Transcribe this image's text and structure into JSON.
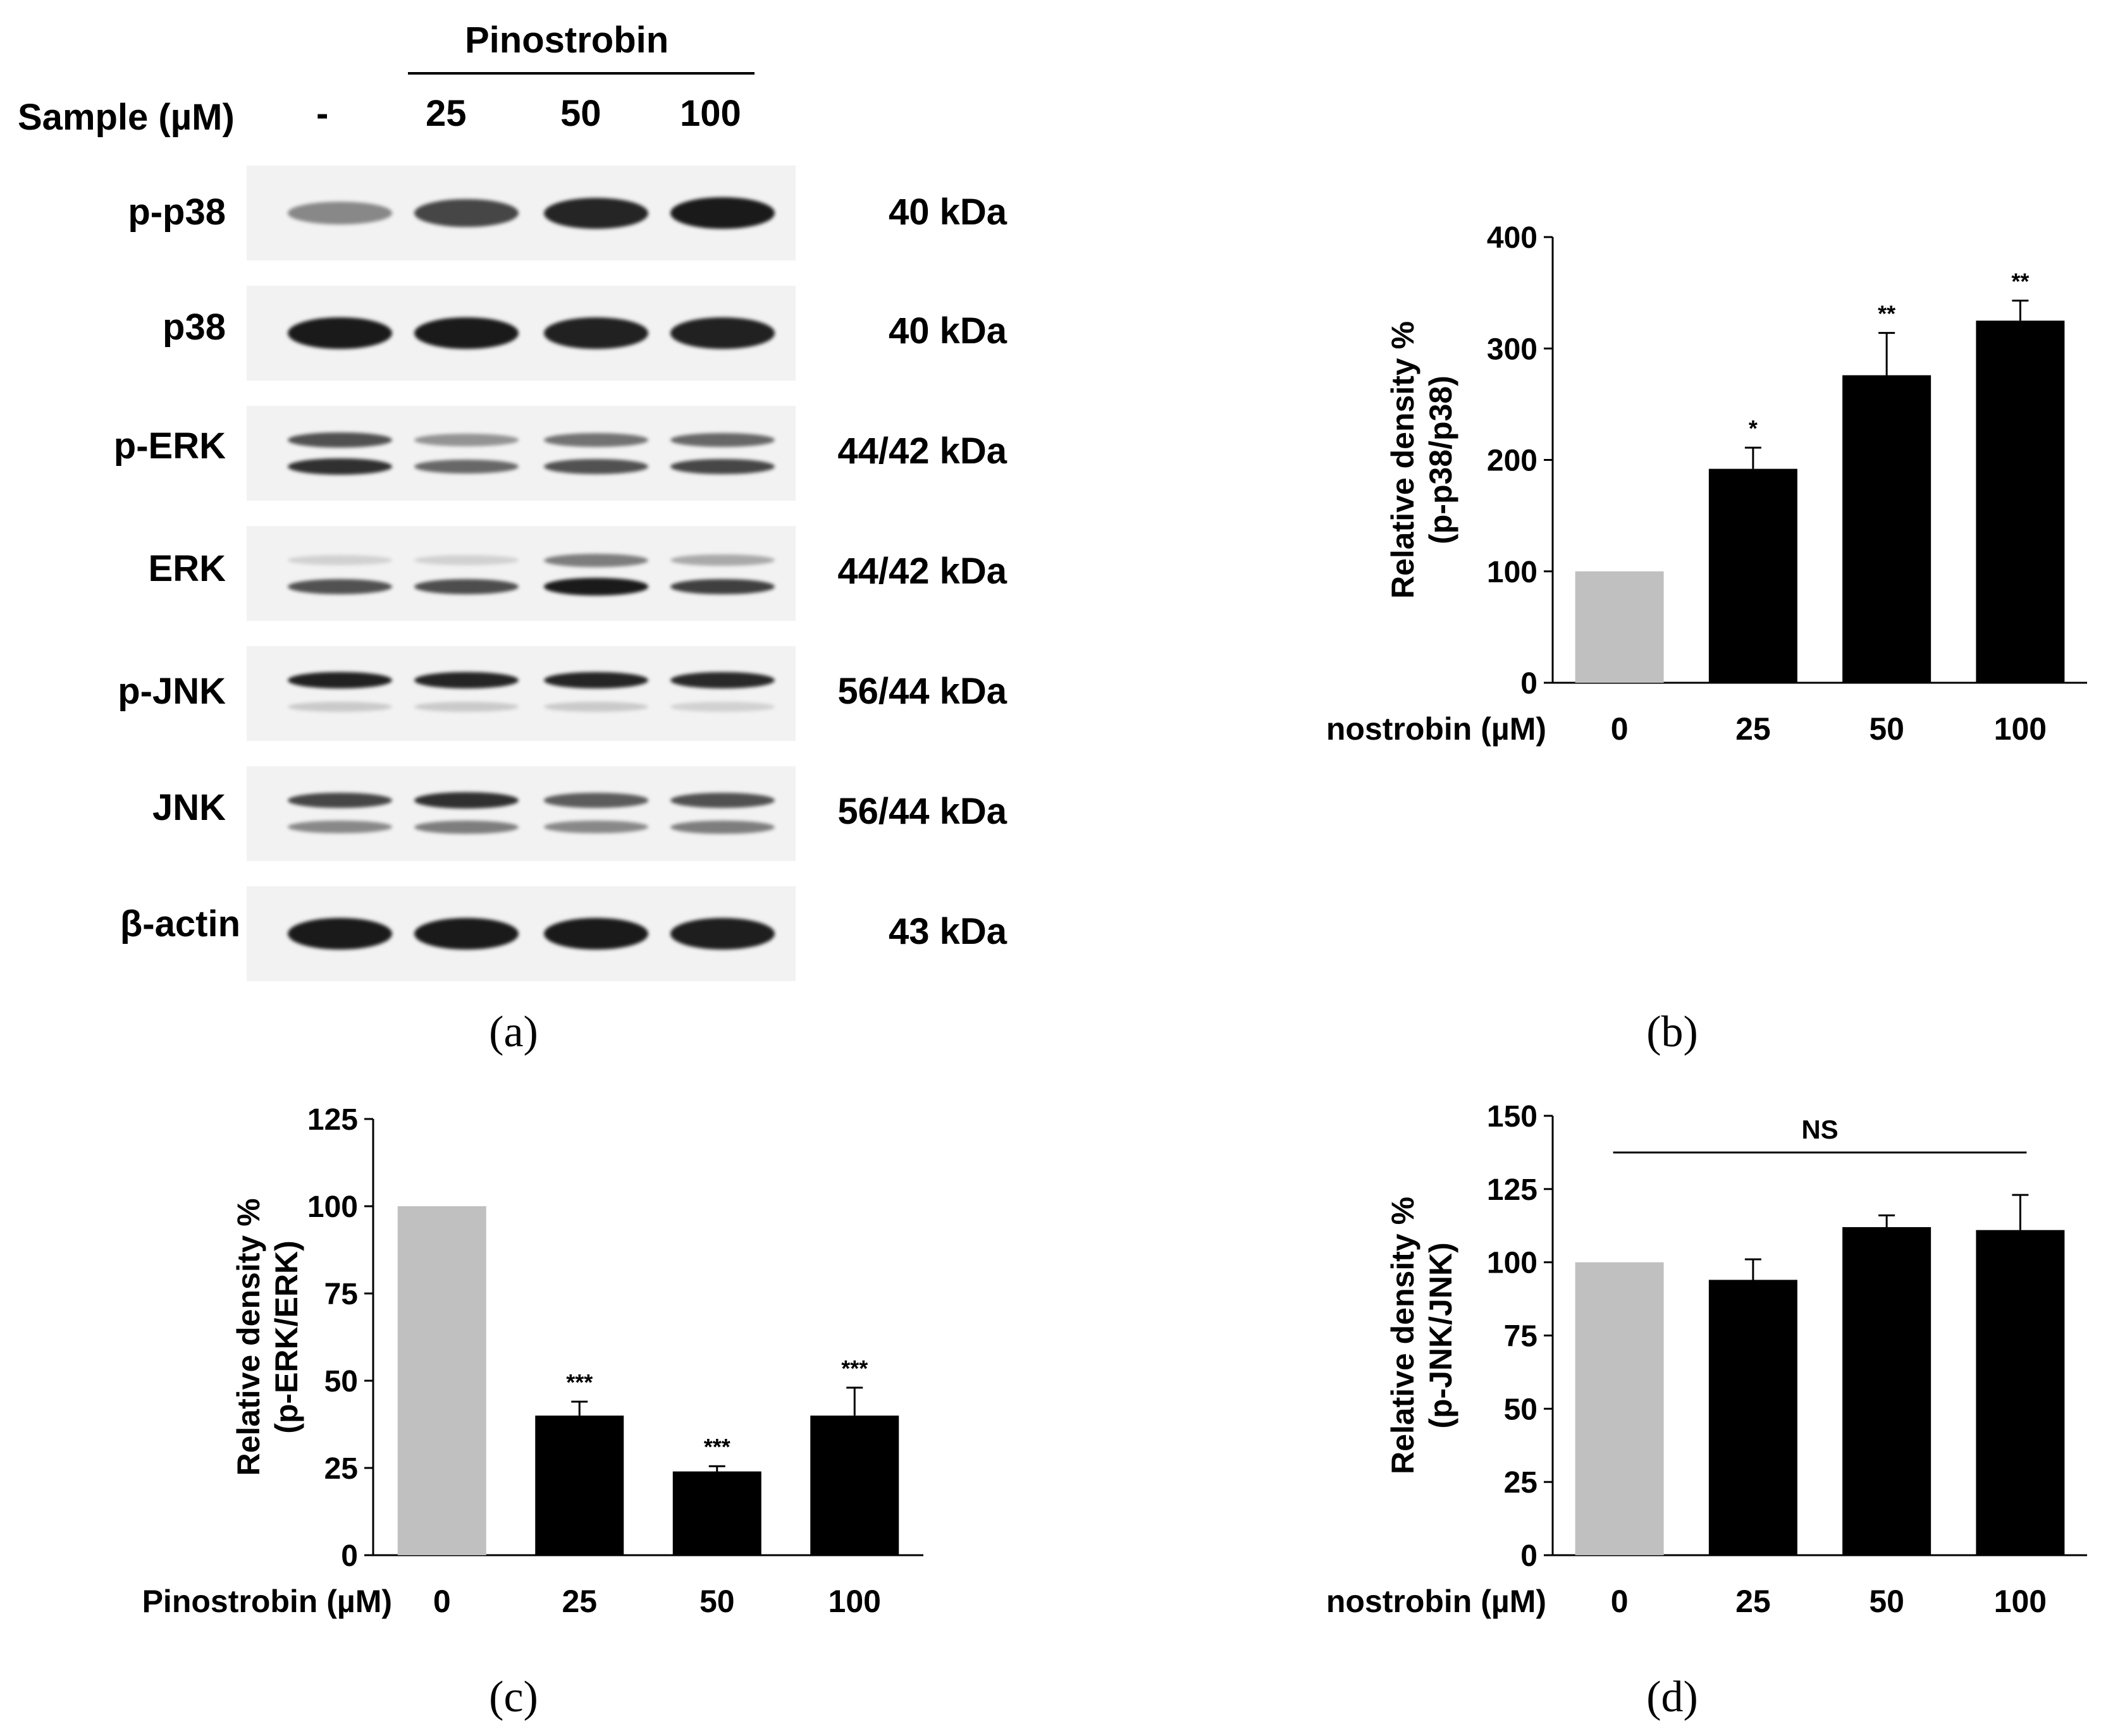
{
  "western_blot": {
    "treatment_title": "Pinostrobin",
    "sample_label": "Sample (µM)",
    "lanes": [
      "-",
      "25",
      "50",
      "100"
    ],
    "caption": "(a)",
    "rows": [
      {
        "name": "p-p38",
        "size": "40 kDa",
        "bands": [
          {
            "intensity": [
              0.45,
              0.75,
              0.9,
              0.95
            ]
          }
        ]
      },
      {
        "name": "p38",
        "size": "40 kDa",
        "bands": [
          {
            "intensity": [
              0.95,
              0.95,
              0.92,
              0.92
            ]
          }
        ]
      },
      {
        "name": "p-ERK",
        "size": "44/42 kDa",
        "bands": [
          {
            "intensity": [
              0.7,
              0.4,
              0.55,
              0.6
            ]
          },
          {
            "intensity": [
              0.85,
              0.6,
              0.7,
              0.75
            ]
          }
        ]
      },
      {
        "name": "ERK",
        "size": "44/42 kDa",
        "bands": [
          {
            "intensity": [
              0.12,
              0.12,
              0.5,
              0.3
            ]
          },
          {
            "intensity": [
              0.7,
              0.72,
              0.95,
              0.78
            ]
          }
        ]
      },
      {
        "name": "p-JNK",
        "size": "56/44 kDa",
        "bands": [
          {
            "intensity": [
              0.92,
              0.9,
              0.9,
              0.88
            ]
          },
          {
            "intensity": [
              0.15,
              0.15,
              0.15,
              0.12
            ]
          }
        ]
      },
      {
        "name": "JNK",
        "size": "56/44 kDa",
        "bands": [
          {
            "intensity": [
              0.75,
              0.85,
              0.65,
              0.7
            ]
          },
          {
            "intensity": [
              0.45,
              0.5,
              0.45,
              0.5
            ]
          }
        ]
      },
      {
        "name": "β-actin",
        "size": "43 kDa",
        "bands": [
          {
            "intensity": [
              0.95,
              0.95,
              0.95,
              0.93
            ]
          }
        ]
      }
    ]
  },
  "chart_data": [
    {
      "id": "b",
      "type": "bar",
      "caption": "(b)",
      "ylabel_line1": "Relative density %",
      "ylabel_line2": "(p-p38/p38)",
      "xlabel": "Pinostrobin (µM)",
      "categories": [
        "0",
        "25",
        "50",
        "100"
      ],
      "values": [
        100,
        192,
        276,
        325
      ],
      "errors": [
        0,
        19,
        38,
        18
      ],
      "significance": [
        "",
        "*",
        "**",
        "**"
      ],
      "colors": [
        "#c0c0c0",
        "#000000",
        "#000000",
        "#000000"
      ],
      "ylim": [
        0,
        400
      ],
      "yticks": [
        0,
        100,
        200,
        300,
        400
      ]
    },
    {
      "id": "c",
      "type": "bar",
      "caption": "(c)",
      "ylabel_line1": "Relative density %",
      "ylabel_line2": "(p-ERK/ERK)",
      "xlabel": "Pinostrobin (µM)",
      "categories": [
        "0",
        "25",
        "50",
        "100"
      ],
      "values": [
        100,
        40,
        24,
        40
      ],
      "errors": [
        0,
        4,
        1.5,
        8
      ],
      "significance": [
        "",
        "***",
        "***",
        "***"
      ],
      "colors": [
        "#c0c0c0",
        "#000000",
        "#000000",
        "#000000"
      ],
      "ylim": [
        0,
        125
      ],
      "yticks": [
        0,
        25,
        50,
        75,
        100,
        125
      ]
    },
    {
      "id": "d",
      "type": "bar",
      "caption": "(d)",
      "ylabel_line1": "Relative density %",
      "ylabel_line2": "(p-JNK/JNK)",
      "xlabel": "Pinostrobin (µM)",
      "categories": [
        "0",
        "25",
        "50",
        "100"
      ],
      "values": [
        100,
        94,
        112,
        111
      ],
      "errors": [
        0,
        7,
        4,
        12
      ],
      "significance": [
        "",
        "",
        "",
        ""
      ],
      "annotation": "NS",
      "colors": [
        "#c0c0c0",
        "#000000",
        "#000000",
        "#000000"
      ],
      "ylim": [
        0,
        150
      ],
      "yticks": [
        0,
        25,
        50,
        75,
        100,
        125,
        150
      ]
    }
  ]
}
